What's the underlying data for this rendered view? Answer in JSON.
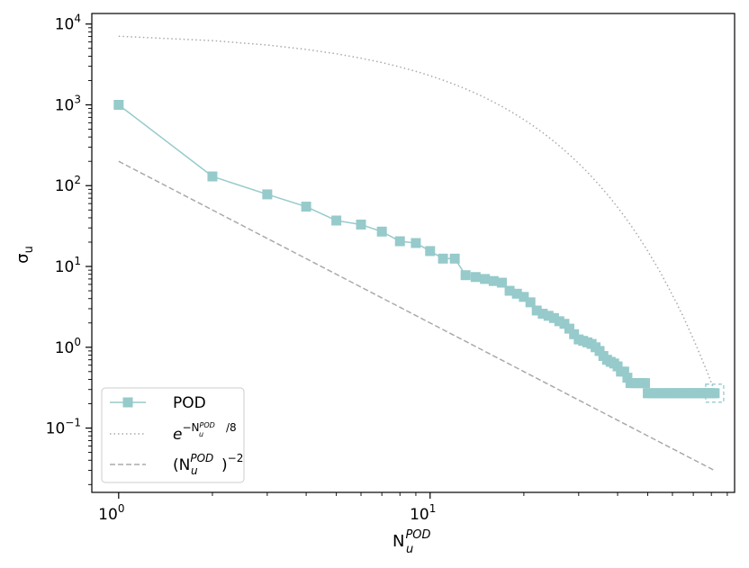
{
  "chart_data": {
    "type": "line",
    "title": "",
    "xscale": "log",
    "yscale": "log",
    "xlabel": "N",
    "xlabel_sub": "u",
    "xlabel_sup": "POD",
    "ylabel": "σ",
    "ylabel_sub": "u",
    "xlim": [
      0.82,
      95
    ],
    "ylim": [
      0.016,
      13500
    ],
    "grid": false,
    "x_ticks": [
      {
        "value": 1,
        "base": "10",
        "exp": "0"
      },
      {
        "value": 10,
        "base": "10",
        "exp": "1"
      }
    ],
    "y_ticks": [
      {
        "value": 0.1,
        "base": "10",
        "exp": "−1"
      },
      {
        "value": 1,
        "base": "10",
        "exp": "0"
      },
      {
        "value": 10,
        "base": "10",
        "exp": "1"
      },
      {
        "value": 100,
        "base": "10",
        "exp": "2"
      },
      {
        "value": 1000,
        "base": "10",
        "exp": "3"
      },
      {
        "value": 10000,
        "base": "10",
        "exp": "4"
      }
    ],
    "legend_position": "lower-left",
    "series": [
      {
        "name": "POD",
        "style": "solid-square-markers",
        "color": "#96CACB",
        "x": [
          1,
          2,
          3,
          4,
          5,
          6,
          7,
          8,
          9,
          10,
          11,
          12,
          13,
          14,
          15,
          16,
          17,
          18,
          19,
          20,
          21,
          22,
          23,
          24,
          25,
          26,
          27,
          28,
          29,
          30,
          31,
          32,
          33,
          34,
          35,
          36,
          37,
          38,
          39,
          40,
          41,
          42,
          43,
          44,
          45,
          46,
          47,
          48,
          49,
          50,
          51,
          52,
          53,
          54,
          55,
          56,
          57,
          58,
          59,
          60,
          61,
          62,
          63,
          64,
          65,
          66,
          67,
          68,
          69,
          70,
          71,
          72,
          73,
          74,
          75,
          76,
          77,
          78,
          79,
          80,
          81,
          82
        ],
        "y": [
          1000,
          130,
          78,
          55,
          37,
          33,
          27,
          20.5,
          19.5,
          15.5,
          12.5,
          12.5,
          7.8,
          7.4,
          7.0,
          6.6,
          6.3,
          5.0,
          4.6,
          4.2,
          3.6,
          2.85,
          2.6,
          2.45,
          2.3,
          2.1,
          1.95,
          1.7,
          1.45,
          1.25,
          1.2,
          1.15,
          1.1,
          1.0,
          0.9,
          0.78,
          0.7,
          0.66,
          0.63,
          0.58,
          0.5,
          0.5,
          0.42,
          0.36,
          0.36,
          0.36,
          0.36,
          0.36,
          0.36,
          0.27,
          0.27,
          0.27,
          0.27,
          0.27,
          0.27,
          0.27,
          0.27,
          0.27,
          0.27,
          0.27,
          0.27,
          0.27,
          0.27,
          0.27,
          0.27,
          0.27,
          0.27,
          0.27,
          0.27,
          0.27,
          0.27,
          0.27,
          0.27,
          0.27,
          0.27,
          0.27,
          0.27,
          0.27,
          0.27,
          0.27,
          0.27,
          0.27
        ]
      },
      {
        "name": "e^(−N_u^POD/8)",
        "style": "dotted",
        "color": "#AAAAAA",
        "x": [
          1,
          2,
          3,
          4,
          5,
          6,
          7,
          8,
          9,
          10,
          11,
          12,
          13,
          14,
          15,
          16,
          17,
          18,
          19,
          20,
          21,
          22,
          23,
          24,
          25,
          26,
          27,
          28,
          29,
          30,
          31,
          32,
          33,
          34,
          35,
          36,
          37,
          38,
          39,
          40,
          41,
          42,
          43,
          44,
          45,
          46,
          47,
          48,
          49,
          50,
          51,
          52,
          53,
          54,
          55,
          56,
          57,
          58,
          59,
          60,
          61,
          62,
          63,
          64,
          65,
          66,
          67,
          68,
          69,
          70,
          71,
          72,
          73,
          74,
          75,
          76,
          77,
          78,
          79,
          80,
          81,
          82
        ],
        "y": [
          7060.8,
          6231.3,
          5499.2,
          4853.1,
          4282.9,
          3779.7,
          3335.7,
          2943.8,
          2597.9,
          2292.7,
          2023.3,
          1785.6,
          1575.8,
          1390.7,
          1227.3,
          1083.1,
          955.9,
          843.6,
          744.5,
          657.0,
          579.8,
          511.7,
          451.6,
          398.5,
          351.7,
          310.4,
          273.9,
          241.7,
          213.3,
          188.3,
          166.1,
          146.6,
          129.4,
          114.2,
          100.8,
          88.9,
          78.5,
          69.3,
          61.1,
          53.9,
          47.6,
          42.0,
          37.1,
          32.7,
          28.9,
          25.5,
          22.5,
          19.8,
          17.5,
          15.5,
          13.6,
          12.0,
          10.6,
          9.4,
          8.3,
          7.3,
          6.4,
          5.7,
          5.0,
          4.4,
          3.9,
          3.5,
          3.0,
          2.7,
          2.4,
          2.1,
          1.85,
          1.63,
          1.44,
          1.27,
          1.12,
          0.99,
          0.87,
          0.77,
          0.68,
          0.6,
          0.53,
          0.47,
          0.41,
          0.36,
          0.32,
          0.28
        ]
      },
      {
        "name": "(N_u^POD)^−2",
        "style": "dashed",
        "color": "#AAAAAA",
        "x": [
          1,
          2,
          3,
          4,
          5,
          6,
          7,
          8,
          9,
          10,
          12,
          15,
          20,
          25,
          30,
          40,
          50,
          60,
          70,
          75,
          80,
          82
        ],
        "y": [
          200,
          50,
          22.2,
          12.5,
          8.0,
          5.56,
          4.08,
          3.13,
          2.47,
          2.0,
          1.39,
          0.889,
          0.5,
          0.32,
          0.222,
          0.125,
          0.08,
          0.0556,
          0.0408,
          0.0356,
          0.0313,
          0.0297
        ]
      }
    ],
    "legend": [
      {
        "label": "POD",
        "series": 0
      },
      {
        "label_base": "e",
        "label_sup_prefix": "−N",
        "label_sup_sub": "u",
        "label_sup_sup": "POD",
        "label_sup_suffix": "/8",
        "series": 1
      },
      {
        "label_open": "(N",
        "label_sub": "u",
        "label_sup": "POD",
        "label_close": ")",
        "label_exp": "−2",
        "series": 2
      }
    ]
  }
}
